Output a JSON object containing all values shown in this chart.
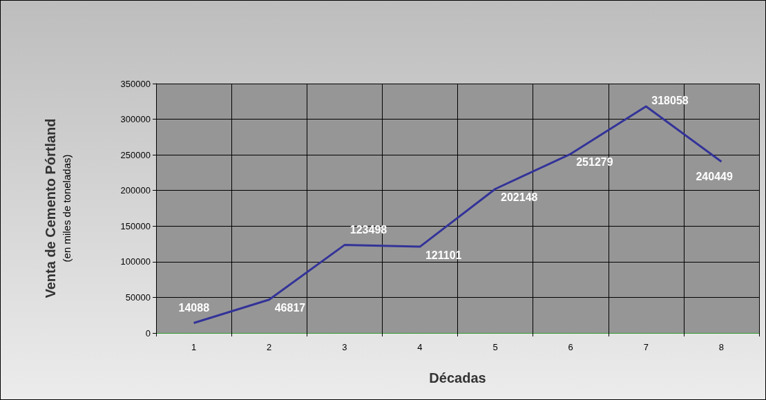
{
  "chart_data": {
    "type": "line",
    "xlabel": "Décadas",
    "ylabel": "Venta de Cemento Pórtland\n(en miles de toneladas)",
    "categories": [
      "1",
      "2",
      "3",
      "4",
      "5",
      "6",
      "7",
      "8"
    ],
    "series": [
      {
        "color": "#333399",
        "values": [
          14088,
          46817,
          123498,
          121101,
          202148,
          251279,
          318058,
          240449
        ]
      }
    ],
    "ylim": [
      0,
      350000
    ],
    "yticks": [
      0,
      50000,
      100000,
      150000,
      200000,
      250000,
      300000,
      350000
    ],
    "grid": true,
    "marker": "none",
    "data_labels": true
  }
}
